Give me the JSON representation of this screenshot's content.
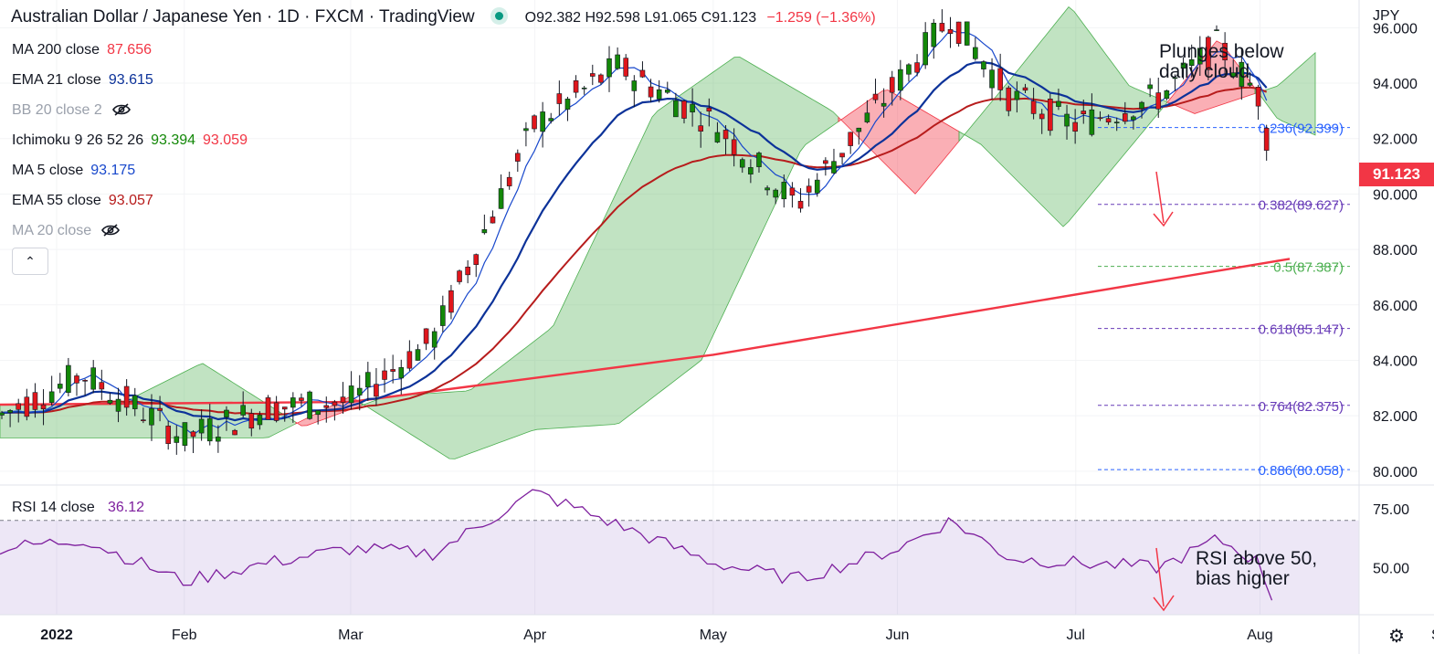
{
  "header": {
    "title": "Australian Dollar / Japanese Yen · 1D · FXCM · TradingView",
    "ohlc": "O92.382 H92.598 L91.065 C91.123",
    "change": "−1.259 (−1.36%)"
  },
  "legend": [
    {
      "label": "MA 200 close",
      "values": [
        "87.656"
      ],
      "colors": [
        "#f23645"
      ],
      "hidden": false
    },
    {
      "label": "EMA 21 close",
      "values": [
        "93.615"
      ],
      "colors": [
        "#0c3299"
      ],
      "hidden": false
    },
    {
      "label": "BB 20 close 2",
      "values": [],
      "colors": [],
      "hidden": true
    },
    {
      "label": "Ichimoku 9 26 52 26",
      "values": [
        "93.394",
        "93.059"
      ],
      "colors": [
        "#138808",
        "#f23645"
      ],
      "hidden": false
    },
    {
      "label": "MA 5 close",
      "values": [
        "93.175"
      ],
      "colors": [
        "#1848cc"
      ],
      "hidden": false
    },
    {
      "label": "EMA 55 close",
      "values": [
        "93.057"
      ],
      "colors": [
        "#b71c1c"
      ],
      "hidden": false
    },
    {
      "label": "MA 20 close",
      "values": [],
      "colors": [],
      "hidden": true
    }
  ],
  "collapse_glyph": "⌃",
  "price_axis": {
    "currency": "JPY",
    "labels": [
      "96.000",
      "94.000",
      "92.000",
      "90.000",
      "88.000",
      "86.000",
      "84.000",
      "82.000",
      "80.000"
    ],
    "current_price": "91.123"
  },
  "rsi_panel": {
    "label": "RSI 14 close",
    "value": "36.12",
    "labels": [
      "75.00",
      "50.00"
    ]
  },
  "time_axis": {
    "labels": [
      "2022",
      "Feb",
      "Mar",
      "Apr",
      "May",
      "Jun",
      "Jul",
      "Aug",
      "Sep"
    ]
  },
  "annotations": {
    "cloud_note": [
      "Plunges below",
      "daily cloud"
    ],
    "rsi_note": [
      "RSI above 50,",
      "bias higher"
    ]
  },
  "chart_data": {
    "type": "line",
    "x": [
      "2022-01-01",
      "2022-01-15",
      "2022-02-01",
      "2022-02-15",
      "2022-03-01",
      "2022-03-15",
      "2022-04-01",
      "2022-04-15",
      "2022-05-01",
      "2022-05-15",
      "2022-06-01",
      "2022-06-10",
      "2022-06-20",
      "2022-07-01",
      "2022-07-15",
      "2022-07-25",
      "2022-08-01",
      "2022-08-03"
    ],
    "series": [
      {
        "name": "",
        "values": [
          82.0,
          83.5,
          81.2,
          82.3,
          82.5,
          84.8,
          92.5,
          94.6,
          92.6,
          89.6,
          94.0,
          96.4,
          93.5,
          92.5,
          93.5,
          95.4,
          93.5,
          91.1
        ]
      }
    ],
    "ylim": [
      79.5,
      97.0
    ],
    "fibonacci": [
      {
        "label": "0.236(92.399)",
        "value": 92.399,
        "color": "#2962ff"
      },
      {
        "label": "0.382(89.627)",
        "value": 89.627,
        "color": "#673ab7"
      },
      {
        "label": "0.5(87.387)",
        "value": 87.387,
        "color": "#4caf50"
      },
      {
        "label": "0.618(85.147)",
        "value": 85.147,
        "color": "#673ab7"
      },
      {
        "label": "0.764(82.375)",
        "value": 82.375,
        "color": "#673ab7"
      },
      {
        "label": "0.886(80.058)",
        "value": 80.058,
        "color": "#2962ff"
      }
    ],
    "ma200": {
      "x": [
        "2022-01-01",
        "2022-03-01",
        "2022-05-01",
        "2022-06-15",
        "2022-08-06"
      ],
      "values": [
        82.4,
        82.5,
        84.2,
        85.8,
        87.66
      ]
    },
    "rsi": {
      "x": [
        "2022-01-01",
        "2022-01-15",
        "2022-02-01",
        "2022-02-15",
        "2022-03-01",
        "2022-03-15",
        "2022-04-01",
        "2022-04-15",
        "2022-05-01",
        "2022-05-15",
        "2022-06-01",
        "2022-06-10",
        "2022-06-20",
        "2022-07-01",
        "2022-07-15",
        "2022-07-25",
        "2022-08-01",
        "2022-08-03"
      ],
      "values": [
        58,
        62,
        44,
        52,
        58,
        56,
        82,
        68,
        52,
        45,
        58,
        70,
        54,
        52,
        50,
        62,
        52,
        36.12
      ],
      "ylim": [
        30,
        85
      ],
      "band": [
        30,
        70
      ]
    }
  }
}
